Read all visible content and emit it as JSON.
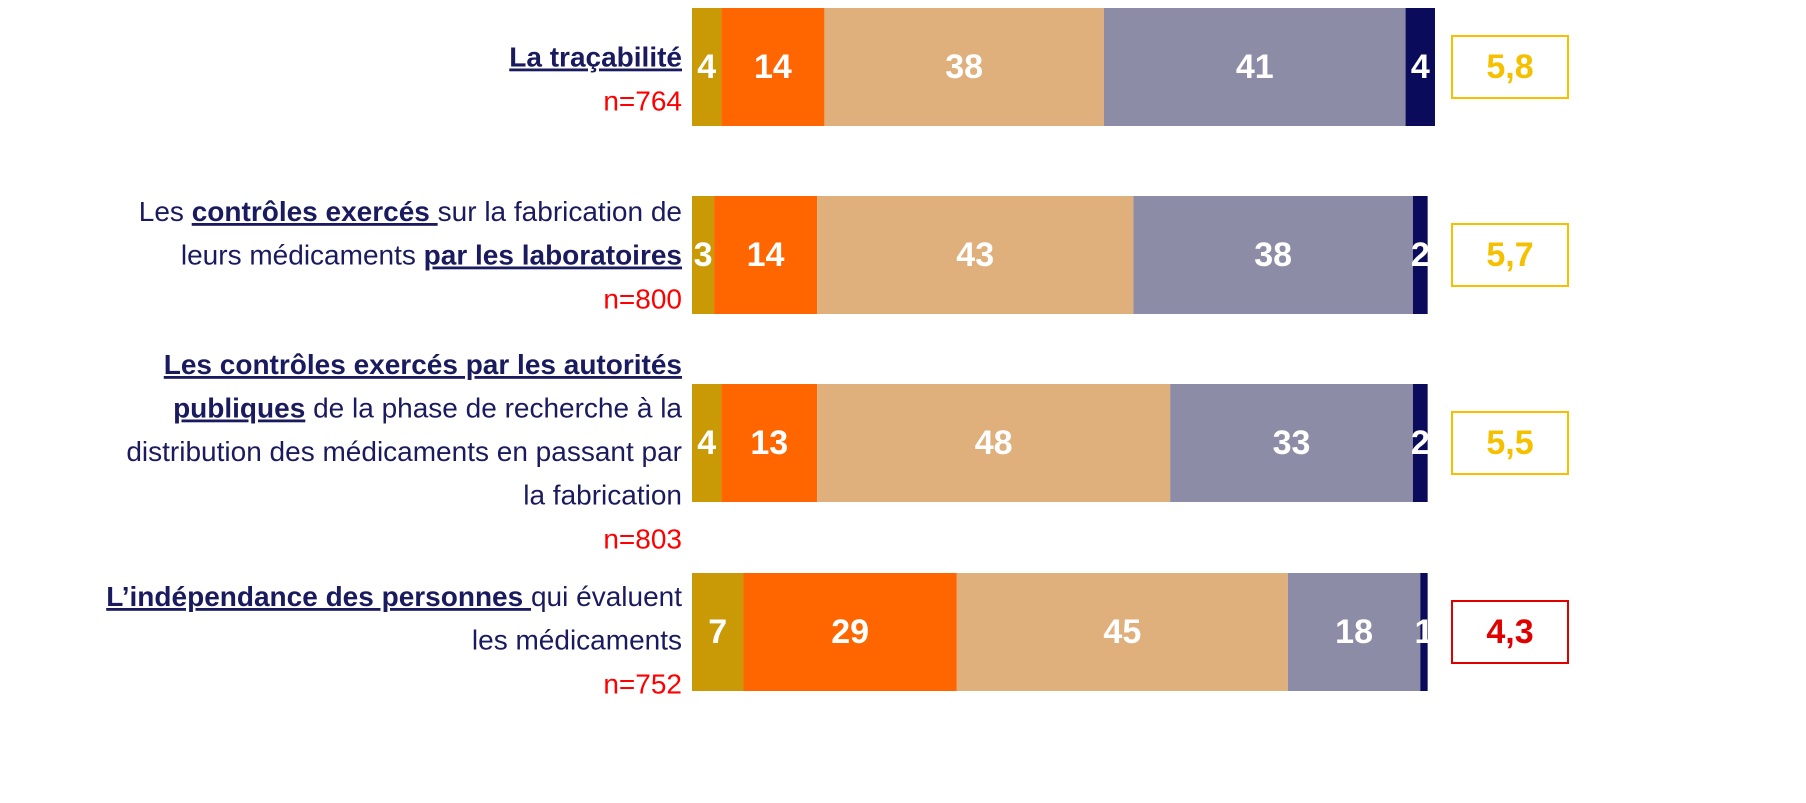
{
  "chart_data": {
    "type": "stacked-bar-horizontal",
    "categories": [
      [
        [
          {
            "text": "La traçabilité",
            "strong": true
          }
        ]
      ],
      [
        [
          {
            "text": "Les ",
            "strong": false
          },
          {
            "text": "contrôles exercés ",
            "strong": true
          },
          {
            "text": "sur la fabrication de",
            "strong": false
          }
        ],
        [
          {
            "text": "leurs médicaments ",
            "strong": false
          },
          {
            "text": "par les laboratoires",
            "strong": true
          }
        ]
      ],
      [
        [
          {
            "text": "Les contrôles exercés par les autorités",
            "strong": true
          }
        ],
        [
          {
            "text": "publiques",
            "strong": true
          },
          {
            "text": " de la phase de recherche à la",
            "strong": false
          }
        ],
        [
          {
            "text": "distribution des médicaments en passant par",
            "strong": false
          }
        ],
        [
          {
            "text": "la fabrication",
            "strong": false
          }
        ]
      ],
      [
        [
          {
            "text": "L’indépendance des personnes ",
            "strong": true
          },
          {
            "text": "qui évaluent",
            "strong": false
          }
        ],
        [
          {
            "text": "les médicaments",
            "strong": false
          }
        ]
      ]
    ],
    "n_labels": [
      "n=764",
      "n=800",
      "n=803",
      "n=752"
    ],
    "series": [
      {
        "color": "#c99a06",
        "values": [
          4,
          3,
          4,
          7
        ]
      },
      {
        "color": "#ff6600",
        "values": [
          14,
          14,
          13,
          29
        ]
      },
      {
        "color": "#dfb07c",
        "values": [
          38,
          43,
          48,
          45
        ]
      },
      {
        "color": "#8c8ca6",
        "values": [
          41,
          38,
          33,
          18
        ]
      },
      {
        "color": "#0b0b5c",
        "values": [
          4,
          2,
          2,
          1
        ]
      }
    ],
    "xlim": [
      0,
      101
    ],
    "scores": [
      5.8,
      5.7,
      5.5,
      4.3
    ],
    "score_labels": [
      "5,8",
      "5,7",
      "5,5",
      "4,3"
    ],
    "score_colors": [
      "#f5c000",
      "#f5c000",
      "#f5c000",
      "#e00000"
    ]
  }
}
